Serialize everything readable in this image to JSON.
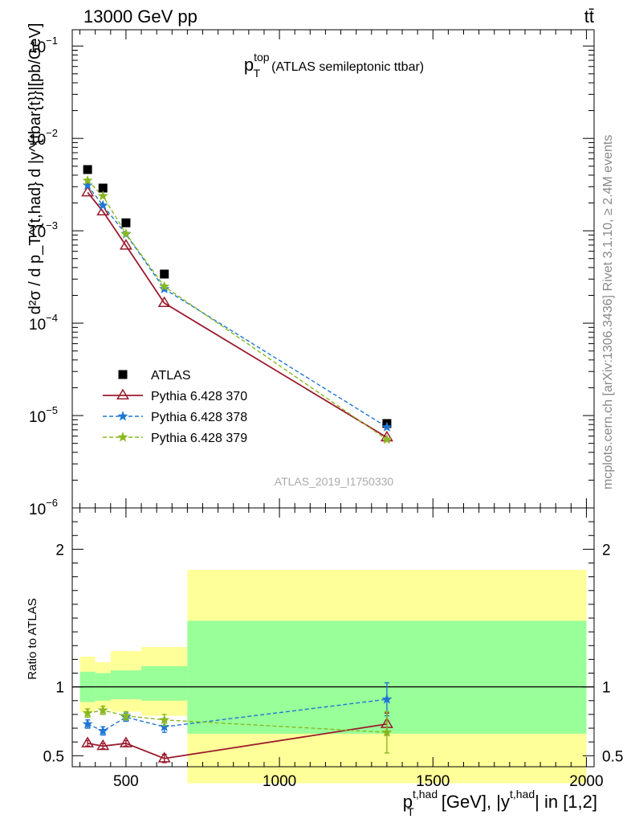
{
  "header": {
    "left": "13000 GeV pp",
    "right": "tt̄"
  },
  "side_text": {
    "rivet": "Rivet 3.1.10, ≥ 2.4M events",
    "mcplots": "mcplots.cern.ch [arXiv:1306.3436]"
  },
  "chart_data": [
    {
      "type": "line",
      "panel": "main",
      "title": {
        "p": "p",
        "sup": "top",
        "sub": "T",
        "rest": "(ATLAS semileptonic ttbar)"
      },
      "ylabel": "d²σ / d p_T^{t,had} d |y^{tbar{t}}|[pb/GeV]",
      "yscale": "log",
      "ylim": [
        1e-06,
        0.15
      ],
      "xlim": [
        325,
        2025
      ],
      "ytick_labels": [
        {
          "base": "10",
          "exp": "−1",
          "value": 0.1
        },
        {
          "base": "10",
          "exp": "−2",
          "value": 0.01
        },
        {
          "base": "10",
          "exp": "−3",
          "value": 0.001
        },
        {
          "base": "10",
          "exp": "−4",
          "value": 0.0001
        },
        {
          "base": "10",
          "exp": "−5",
          "value": 1e-05
        },
        {
          "base": "10",
          "exp": "−6",
          "value": 1e-06
        }
      ],
      "watermark": "ATLAS_2019_I1750330",
      "legend_position": "middle-left",
      "x": [
        375,
        425,
        500,
        625,
        1350
      ],
      "series": [
        {
          "name": "ATLAS",
          "color": "#000000",
          "marker": "square",
          "values": [
            0.0046,
            0.0029,
            0.00122,
            0.00034,
            8.2e-06
          ]
        },
        {
          "name": "Pythia 6.428 370",
          "color": "#9a1a2c",
          "marker": "open-triangle",
          "line": "solid",
          "values": [
            0.0026,
            0.00162,
            0.00069,
            0.000165,
            5.8e-06
          ]
        },
        {
          "name": "Pythia 6.428 378",
          "color": "#1f77d4",
          "marker": "star",
          "line": "dashed",
          "values": [
            0.0031,
            0.00188,
            0.00092,
            0.000235,
            7.5e-06
          ]
        },
        {
          "name": "Pythia 6.428 379",
          "color": "#8ab820",
          "marker": "star",
          "line": "dashed",
          "values": [
            0.0035,
            0.00238,
            0.00093,
            0.00025,
            5.5e-06
          ]
        }
      ]
    },
    {
      "type": "line",
      "panel": "ratio",
      "ylabel": "Ratio to ATLAS",
      "xlabel": {
        "p": "p",
        "sup1": "t,had",
        "sub": "T",
        "mid": " [GeV], |y",
        "sup2": "t,had",
        "end": "| in [1,2]"
      },
      "ylim": [
        0.42,
        2.3
      ],
      "xlim": [
        325,
        2025
      ],
      "xticks": [
        500,
        1000,
        1500,
        2000
      ],
      "yticks": [
        0.5,
        1,
        2
      ],
      "bins": [
        {
          "lo": 350,
          "hi": 400,
          "stat_lo": 0.89,
          "stat_hi": 1.11,
          "tot_lo": 0.82,
          "tot_hi": 1.22
        },
        {
          "lo": 400,
          "hi": 450,
          "stat_lo": 0.9,
          "stat_hi": 1.1,
          "tot_lo": 0.84,
          "tot_hi": 1.18
        },
        {
          "lo": 450,
          "hi": 550,
          "stat_lo": 0.91,
          "stat_hi": 1.12,
          "tot_lo": 0.82,
          "tot_hi": 1.26
        },
        {
          "lo": 550,
          "hi": 700,
          "stat_lo": 0.9,
          "stat_hi": 1.15,
          "tot_lo": 0.79,
          "tot_hi": 1.29
        },
        {
          "lo": 700,
          "hi": 2000,
          "stat_lo": 0.66,
          "stat_hi": 1.48,
          "tot_lo": 0.3,
          "tot_hi": 1.85
        }
      ],
      "x": [
        375,
        425,
        500,
        625,
        1350
      ],
      "series": [
        {
          "name": "Pythia 6.428 370",
          "color": "#9a1a2c",
          "marker": "open-triangle",
          "line": "solid",
          "values": [
            0.59,
            0.57,
            0.59,
            0.48,
            0.73
          ],
          "err": [
            0.02,
            0.02,
            0.02,
            0.03,
            0.08
          ]
        },
        {
          "name": "Pythia 6.428 378",
          "color": "#1f77d4",
          "marker": "star",
          "line": "dashed",
          "values": [
            0.73,
            0.68,
            0.78,
            0.71,
            0.91
          ],
          "err": [
            0.03,
            0.03,
            0.03,
            0.04,
            0.12
          ]
        },
        {
          "name": "Pythia 6.428 379",
          "color": "#8ab820",
          "marker": "star",
          "line": "dashed",
          "values": [
            0.81,
            0.83,
            0.79,
            0.76,
            0.67
          ],
          "err": [
            0.03,
            0.03,
            0.03,
            0.04,
            0.15
          ]
        }
      ]
    }
  ]
}
